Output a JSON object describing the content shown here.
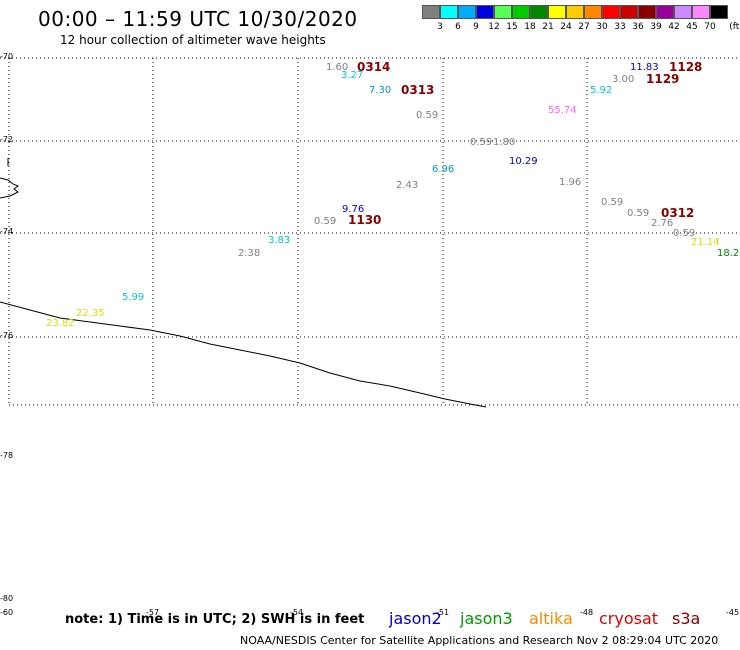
{
  "header": {
    "title": "00:00 – 11:59 UTC 10/30/2020",
    "subtitle": "12 hour collection of altimeter wave heights"
  },
  "colorbar": {
    "unit": "(ft)",
    "boxes": [
      {
        "color": "#808080",
        "label": "3"
      },
      {
        "color": "#00ffff",
        "label": "6"
      },
      {
        "color": "#00aaff",
        "label": "9"
      },
      {
        "color": "#0000dd",
        "label": "12"
      },
      {
        "color": "#55ff55",
        "label": "15"
      },
      {
        "color": "#00cc00",
        "label": "18"
      },
      {
        "color": "#008800",
        "label": "21"
      },
      {
        "color": "#ffff00",
        "label": "24"
      },
      {
        "color": "#ffcc00",
        "label": "27"
      },
      {
        "color": "#ff8800",
        "label": "30"
      },
      {
        "color": "#ff0000",
        "label": "33"
      },
      {
        "color": "#cc0000",
        "label": "36"
      },
      {
        "color": "#880000",
        "label": "39"
      },
      {
        "color": "#990099",
        "label": "42"
      },
      {
        "color": "#cc88ff",
        "label": "45"
      },
      {
        "color": "#ff88ff",
        "label": "70"
      },
      {
        "color": "#000000",
        "label": ""
      }
    ]
  },
  "axes": {
    "lat_labels": [
      "-70",
      "-72",
      "-74",
      "-76",
      "-78",
      "-80"
    ],
    "lon_labels": [
      "-60",
      "-57",
      "-54",
      "-51",
      "-48",
      "-45"
    ]
  },
  "wave_heights": [
    {
      "value": "1.60",
      "color": "#808080"
    },
    {
      "value": "3.27",
      "color": "#00cccc"
    },
    {
      "value": "7.30",
      "color": "#0099cc"
    },
    {
      "value": "0.59",
      "color": "#808080"
    },
    {
      "value": "0.59",
      "color": "#808080"
    },
    {
      "value": "1.80",
      "color": "#808080"
    },
    {
      "value": "10.29",
      "color": "#0000cc"
    },
    {
      "value": "6.96",
      "color": "#0099cc"
    },
    {
      "value": "2.43",
      "color": "#808080"
    },
    {
      "value": "9.76",
      "color": "#0000cc"
    },
    {
      "value": "0.59",
      "color": "#808080"
    },
    {
      "value": "3.83",
      "color": "#00cccc"
    },
    {
      "value": "2.38",
      "color": "#808080"
    },
    {
      "value": "5.99",
      "color": "#00cccc"
    },
    {
      "value": "22.35",
      "color": "#dddd00"
    },
    {
      "value": "23.82",
      "color": "#dddd00"
    },
    {
      "value": "11.83",
      "color": "#0000cc"
    },
    {
      "value": "3.00",
      "color": "#808080"
    },
    {
      "value": "5.92",
      "color": "#00cccc"
    },
    {
      "value": "55.74",
      "color": "#ff66ff"
    },
    {
      "value": "1.96",
      "color": "#808080"
    },
    {
      "value": "0.59",
      "color": "#808080"
    },
    {
      "value": "0.59",
      "color": "#808080"
    },
    {
      "value": "2.76",
      "color": "#808080"
    },
    {
      "value": "0.59",
      "color": "#808080"
    },
    {
      "value": "21.14",
      "color": "#dddd00"
    },
    {
      "value": "18.2",
      "color": "#008800"
    }
  ],
  "date_labels": [
    {
      "text": "0314",
      "color": "#880000"
    },
    {
      "text": "0313",
      "color": "#880000"
    },
    {
      "text": "1130",
      "color": "#880000"
    },
    {
      "text": "1128",
      "color": "#880000"
    },
    {
      "text": "1129",
      "color": "#880000"
    },
    {
      "text": "0312",
      "color": "#880000"
    }
  ],
  "footer": {
    "note": "note: 1) Time is in UTC; 2) SWH is in feet",
    "satellites": [
      {
        "name": "jason2",
        "color": "#0000cc"
      },
      {
        "name": "jason3",
        "color": "#009900"
      },
      {
        "name": "altika",
        "color": "#ff8800"
      },
      {
        "name": "cryosat",
        "color": "#dd0000"
      },
      {
        "name": "s3a",
        "color": "#880000"
      }
    ],
    "credit": "NOAA/NESDIS Center for Satellite Applications and Research    Nov  2 08:29:04 UTC 2020"
  }
}
